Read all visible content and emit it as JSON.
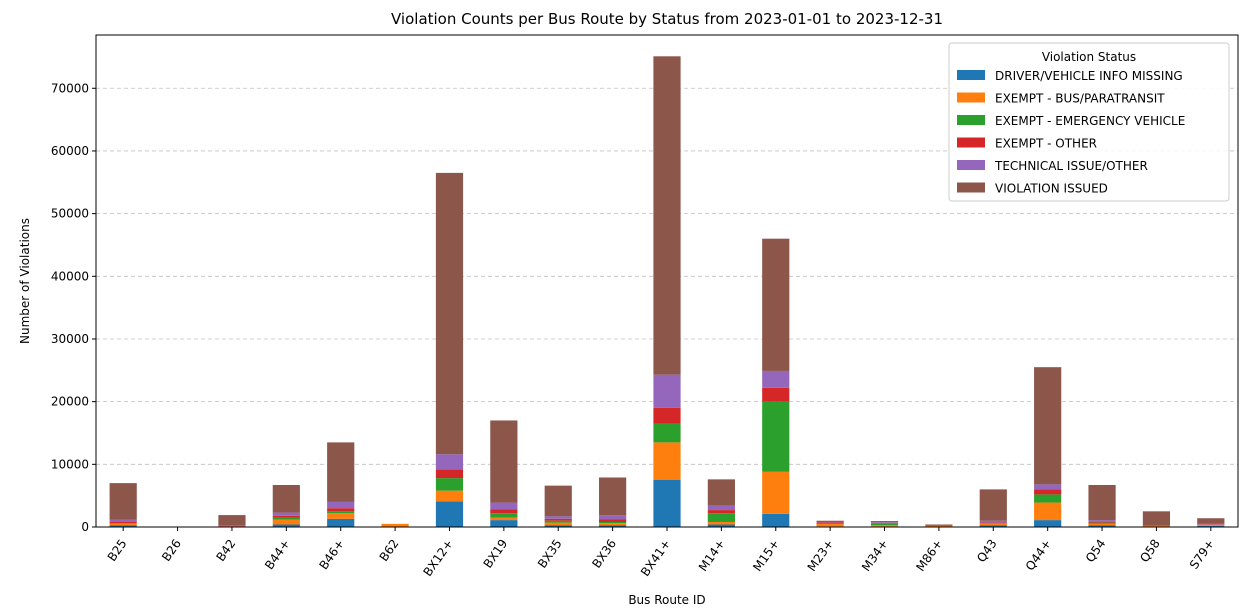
{
  "chart_data": {
    "type": "bar",
    "stacked": true,
    "title": "Violation Counts per Bus Route by Status from 2023-01-01 to 2023-12-31",
    "xlabel": "Bus Route ID",
    "ylabel": "Number of Violations",
    "ylim": [
      0,
      78500
    ],
    "yticks": [
      0,
      10000,
      20000,
      30000,
      40000,
      50000,
      60000,
      70000
    ],
    "grid": "y-dashed",
    "legend_title": "Violation Status",
    "legend_position": "top-right",
    "categories": [
      "B25",
      "B26",
      "B42",
      "B44+",
      "B46+",
      "B62",
      "BX12+",
      "BX19",
      "BX35",
      "BX36",
      "BX41+",
      "M14+",
      "M15+",
      "M23+",
      "M34+",
      "M86+",
      "Q43",
      "Q44+",
      "Q54",
      "Q58",
      "S79+"
    ],
    "series": [
      {
        "name": "DRIVER/VEHICLE INFO MISSING",
        "color": "#1f77b4",
        "values": [
          300,
          0,
          50,
          400,
          1300,
          0,
          4100,
          1100,
          300,
          300,
          7500,
          400,
          2100,
          100,
          100,
          50,
          300,
          1100,
          300,
          50,
          200
        ]
      },
      {
        "name": "EXEMPT - BUS/PARATRANSIT",
        "color": "#ff7f0e",
        "values": [
          200,
          0,
          50,
          800,
          900,
          500,
          1700,
          400,
          400,
          300,
          6000,
          400,
          6700,
          400,
          200,
          100,
          200,
          2800,
          200,
          100,
          100
        ]
      },
      {
        "name": "EXEMPT - EMERGENCY VEHICLE",
        "color": "#2ca02c",
        "values": [
          100,
          0,
          0,
          300,
          300,
          0,
          2000,
          700,
          300,
          200,
          3000,
          1400,
          11200,
          50,
          300,
          0,
          100,
          1300,
          200,
          0,
          50
        ]
      },
      {
        "name": "EXEMPT - OTHER",
        "color": "#d62728",
        "values": [
          200,
          0,
          50,
          300,
          500,
          0,
          1400,
          600,
          300,
          400,
          2500,
          500,
          2200,
          200,
          50,
          50,
          100,
          800,
          100,
          100,
          100
        ]
      },
      {
        "name": "TECHNICAL ISSUE/OTHER",
        "color": "#9467bd",
        "values": [
          400,
          0,
          50,
          500,
          1000,
          0,
          2400,
          1100,
          400,
          700,
          5300,
          700,
          2700,
          50,
          100,
          0,
          300,
          800,
          300,
          50,
          50
        ]
      },
      {
        "name": "VIOLATION ISSUED",
        "color": "#8c564b",
        "values": [
          5800,
          0,
          1700,
          4400,
          9500,
          0,
          44900,
          13100,
          4900,
          6000,
          50800,
          4200,
          21100,
          200,
          200,
          200,
          5000,
          18700,
          5600,
          2200,
          900
        ]
      }
    ]
  }
}
